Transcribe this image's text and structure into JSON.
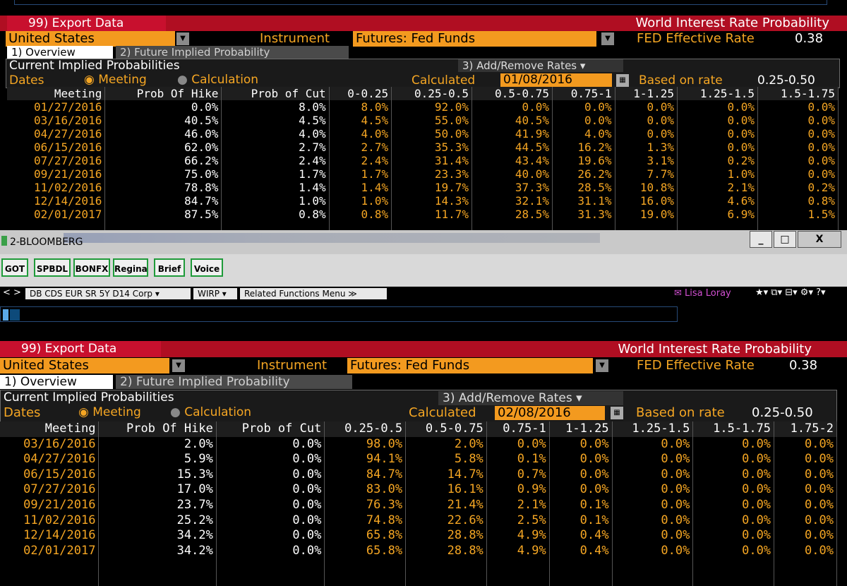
{
  "panel1": {
    "export_label": "99) Export Data",
    "title": "World Interest Rate Probability",
    "country": "United States",
    "instrument_label": "Instrument",
    "instrument_value": "Futures: Fed Funds",
    "fed_label": "FED Effective Rate",
    "fed_value": "0.38",
    "tab1": "1) Overview",
    "tab2": "2) Future Implied Probability",
    "section_title": "Current Implied Probabilities",
    "add_remove": "3) Add/Remove Rates ▾",
    "dates_label": "Dates",
    "meeting_label": "Meeting",
    "calculation_label": "Calculation",
    "calculated_label": "Calculated",
    "calculated_value": "01/08/2016",
    "based_label": "Based on rate",
    "based_value": "0.25-0.50",
    "headers": [
      "Meeting",
      "Prob Of Hike",
      "Prob of Cut",
      "0-0.25",
      "0.25-0.5",
      "0.5-0.75",
      "0.75-1",
      "1-1.25",
      "1.25-1.5",
      "1.5-1.75"
    ],
    "rows": [
      [
        "01/27/2016",
        "0.0%",
        "8.0%",
        "8.0%",
        "92.0%",
        "0.0%",
        "0.0%",
        "0.0%",
        "0.0%",
        "0.0%"
      ],
      [
        "03/16/2016",
        "40.5%",
        "4.5%",
        "4.5%",
        "55.0%",
        "40.5%",
        "0.0%",
        "0.0%",
        "0.0%",
        "0.0%"
      ],
      [
        "04/27/2016",
        "46.0%",
        "4.0%",
        "4.0%",
        "50.0%",
        "41.9%",
        "4.0%",
        "0.0%",
        "0.0%",
        "0.0%"
      ],
      [
        "06/15/2016",
        "62.0%",
        "2.7%",
        "2.7%",
        "35.3%",
        "44.5%",
        "16.2%",
        "1.3%",
        "0.0%",
        "0.0%"
      ],
      [
        "07/27/2016",
        "66.2%",
        "2.4%",
        "2.4%",
        "31.4%",
        "43.4%",
        "19.6%",
        "3.1%",
        "0.2%",
        "0.0%"
      ],
      [
        "09/21/2016",
        "75.0%",
        "1.7%",
        "1.7%",
        "23.3%",
        "40.0%",
        "26.2%",
        "7.7%",
        "1.0%",
        "0.0%"
      ],
      [
        "11/02/2016",
        "78.8%",
        "1.4%",
        "1.4%",
        "19.7%",
        "37.3%",
        "28.5%",
        "10.8%",
        "2.1%",
        "0.2%"
      ],
      [
        "12/14/2016",
        "84.7%",
        "1.0%",
        "1.0%",
        "14.3%",
        "32.1%",
        "31.1%",
        "16.0%",
        "4.6%",
        "0.8%"
      ],
      [
        "02/01/2017",
        "87.5%",
        "0.8%",
        "0.8%",
        "11.7%",
        "28.5%",
        "31.3%",
        "19.0%",
        "6.9%",
        "1.5%"
      ]
    ]
  },
  "window": {
    "title": "2-BLOOMBERG",
    "minimize": "_",
    "maximize": "□",
    "close": "X",
    "toolbar_buttons": [
      "GOT",
      "SPBDL",
      "BONFX",
      "Regina",
      "Brief",
      "Voice"
    ],
    "nav": "< >",
    "security": "DB CDS EUR SR 5Y D14 Corp ▾",
    "function": "WIRP ▾",
    "related": "Related Functions Menu  ≫",
    "user": "✉ Lisa Loray",
    "icons": "★▾ ⧉▾ ⊟▾ ⚙▾ ?▾"
  },
  "panel2": {
    "export_label": "99) Export Data",
    "title": "World Interest Rate Probability",
    "country": "United States",
    "instrument_label": "Instrument",
    "instrument_value": "Futures: Fed Funds",
    "fed_label": "FED Effective Rate",
    "fed_value": "0.38",
    "tab1": "1) Overview",
    "tab2": "2) Future Implied Probability",
    "section_title": "Current Implied Probabilities",
    "add_remove": "3) Add/Remove Rates ▾",
    "dates_label": "Dates",
    "meeting_label": "Meeting",
    "calculation_label": "Calculation",
    "calculated_label": "Calculated",
    "calculated_value": "02/08/2016",
    "based_label": "Based on rate",
    "based_value": "0.25-0.50",
    "headers": [
      "Meeting",
      "Prob Of Hike",
      "Prob of Cut",
      "0.25-0.5",
      "0.5-0.75",
      "0.75-1",
      "1-1.25",
      "1.25-1.5",
      "1.5-1.75",
      "1.75-2"
    ],
    "rows": [
      [
        "03/16/2016",
        "2.0%",
        "0.0%",
        "98.0%",
        "2.0%",
        "0.0%",
        "0.0%",
        "0.0%",
        "0.0%",
        "0.0%"
      ],
      [
        "04/27/2016",
        "5.9%",
        "0.0%",
        "94.1%",
        "5.8%",
        "0.1%",
        "0.0%",
        "0.0%",
        "0.0%",
        "0.0%"
      ],
      [
        "06/15/2016",
        "15.3%",
        "0.0%",
        "84.7%",
        "14.7%",
        "0.7%",
        "0.0%",
        "0.0%",
        "0.0%",
        "0.0%"
      ],
      [
        "07/27/2016",
        "17.0%",
        "0.0%",
        "83.0%",
        "16.1%",
        "0.9%",
        "0.0%",
        "0.0%",
        "0.0%",
        "0.0%"
      ],
      [
        "09/21/2016",
        "23.7%",
        "0.0%",
        "76.3%",
        "21.4%",
        "2.1%",
        "0.1%",
        "0.0%",
        "0.0%",
        "0.0%"
      ],
      [
        "11/02/2016",
        "25.2%",
        "0.0%",
        "74.8%",
        "22.6%",
        "2.5%",
        "0.1%",
        "0.0%",
        "0.0%",
        "0.0%"
      ],
      [
        "12/14/2016",
        "34.2%",
        "0.0%",
        "65.8%",
        "28.8%",
        "4.9%",
        "0.4%",
        "0.0%",
        "0.0%",
        "0.0%"
      ],
      [
        "02/01/2017",
        "34.2%",
        "0.0%",
        "65.8%",
        "28.8%",
        "4.9%",
        "0.4%",
        "0.0%",
        "0.0%",
        "0.0%"
      ]
    ]
  }
}
